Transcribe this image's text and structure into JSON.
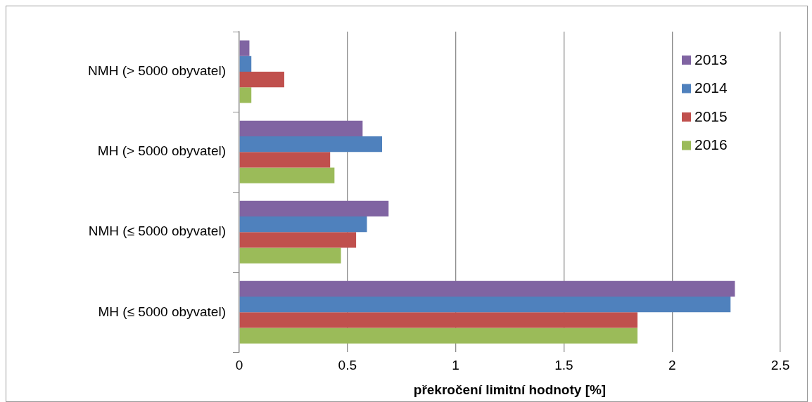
{
  "chart_data": {
    "type": "bar",
    "orientation": "horizontal",
    "xlabel": "překročení limitní hodnoty [%]",
    "categories": [
      "NMH (> 5000 obyvatel)",
      "MH (> 5000 obyvatel)",
      "NMH (≤ 5000 obyvatel)",
      "MH (≤ 5000 obyvatel)"
    ],
    "series": [
      {
        "name": "2013",
        "color": "#8064a2",
        "values": [
          0.047,
          0.57,
          0.69,
          2.29
        ]
      },
      {
        "name": "2014",
        "color": "#4f81bd",
        "values": [
          0.056,
          0.66,
          0.59,
          2.27
        ]
      },
      {
        "name": "2015",
        "color": "#c0504d",
        "values": [
          0.208,
          0.42,
          0.54,
          1.84
        ]
      },
      {
        "name": "2016",
        "color": "#9bbb59",
        "values": [
          0.056,
          0.44,
          0.47,
          1.84
        ]
      }
    ],
    "xlim": [
      0,
      2.5
    ],
    "xticks": [
      0,
      0.5,
      1,
      1.5,
      2,
      2.5
    ],
    "grid": "x",
    "legend": "top right"
  }
}
